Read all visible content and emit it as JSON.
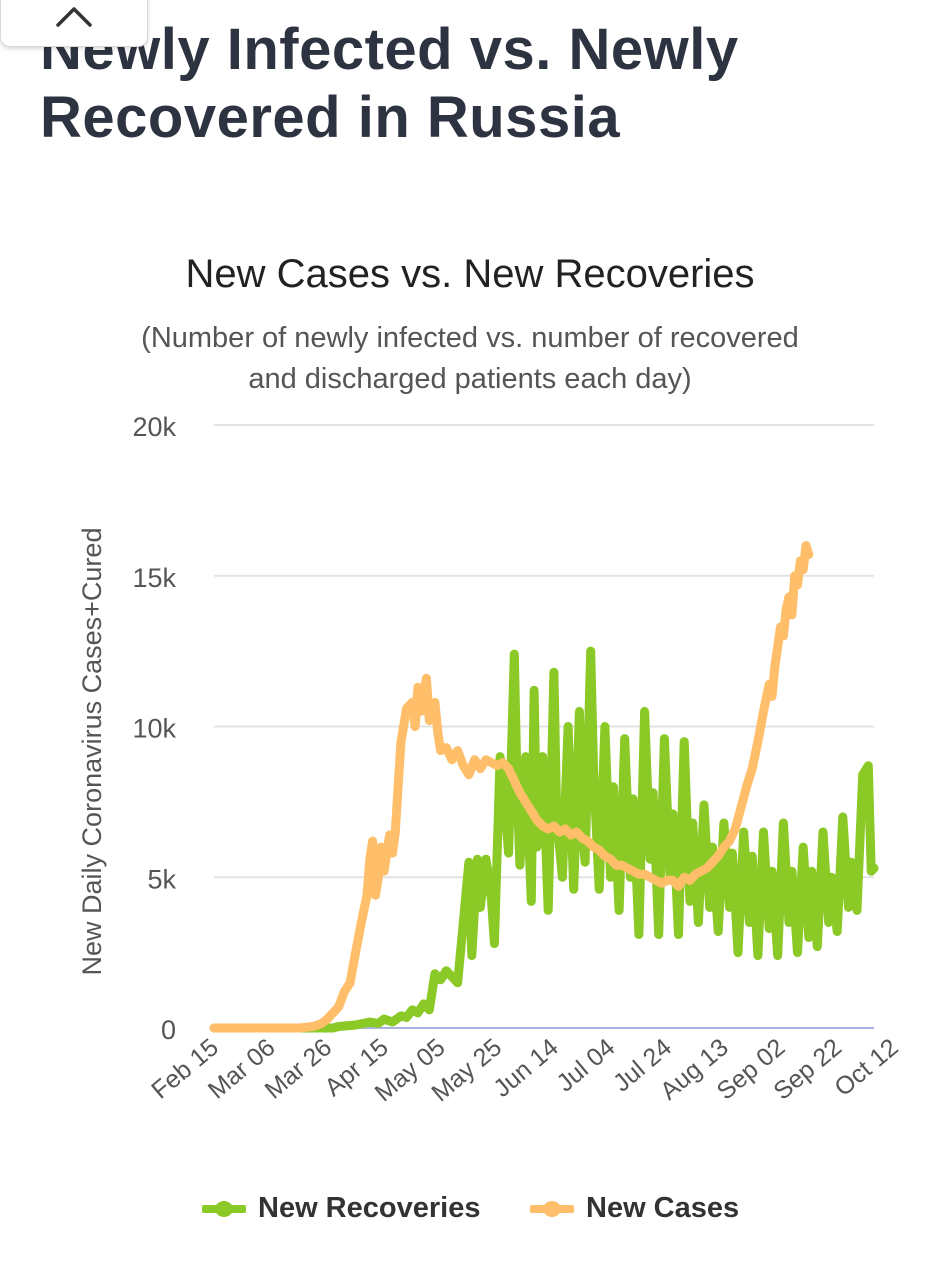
{
  "page": {
    "title": "Newly Infected vs. Newly Recovered in Russia",
    "collapse_icon": "chevron-up-icon"
  },
  "chart_data": {
    "type": "line",
    "title": "New Cases vs. New Recoveries",
    "subtitle": "(Number of newly infected vs. number of recovered and discharged patients each day)",
    "ylabel": "New Daily Coronavirus Cases+Cured",
    "xlabel": "",
    "ylim": [
      0,
      20000
    ],
    "yticks": [
      0,
      5000,
      10000,
      15000,
      20000
    ],
    "ytick_labels": [
      "0",
      "5k",
      "10k",
      "15k",
      "20k"
    ],
    "x_ticks": [
      "Feb 15",
      "Mar 06",
      "Mar 26",
      "Apr 15",
      "May 05",
      "May 25",
      "Jun 14",
      "Jul 04",
      "Jul 24",
      "Aug 13",
      "Sep 02",
      "Sep 22",
      "Oct 12"
    ],
    "x_start": "Feb 15",
    "x_end": "Oct 19",
    "grid": true,
    "legend_position": "bottom",
    "series": [
      {
        "name": "New Recoveries",
        "color": "#8ac926",
        "values": [
          [
            0,
            0
          ],
          [
            42,
            0
          ],
          [
            44,
            50
          ],
          [
            50,
            100
          ],
          [
            55,
            200
          ],
          [
            58,
            150
          ],
          [
            60,
            300
          ],
          [
            63,
            200
          ],
          [
            66,
            400
          ],
          [
            68,
            350
          ],
          [
            70,
            600
          ],
          [
            72,
            500
          ],
          [
            74,
            800
          ],
          [
            76,
            600
          ],
          [
            78,
            1800
          ],
          [
            80,
            1600
          ],
          [
            82,
            1900
          ],
          [
            84,
            1700
          ],
          [
            86,
            1500
          ],
          [
            88,
            3500
          ],
          [
            90,
            5500
          ],
          [
            91,
            2400
          ],
          [
            93,
            5600
          ],
          [
            94,
            4000
          ],
          [
            96,
            5600
          ],
          [
            97,
            5000
          ],
          [
            98,
            4200
          ],
          [
            99,
            2800
          ],
          [
            101,
            9000
          ],
          [
            103,
            7000
          ],
          [
            104,
            5800
          ],
          [
            106,
            12400
          ],
          [
            107,
            8000
          ],
          [
            108,
            5400
          ],
          [
            110,
            9000
          ],
          [
            112,
            4200
          ],
          [
            113,
            11200
          ],
          [
            114,
            6000
          ],
          [
            116,
            9000
          ],
          [
            118,
            3900
          ],
          [
            120,
            11800
          ],
          [
            121,
            7000
          ],
          [
            123,
            5000
          ],
          [
            125,
            10000
          ],
          [
            126,
            7200
          ],
          [
            127,
            4600
          ],
          [
            129,
            10500
          ],
          [
            130,
            6500
          ],
          [
            131,
            5500
          ],
          [
            133,
            12500
          ],
          [
            134,
            8500
          ],
          [
            136,
            4600
          ],
          [
            138,
            10000
          ],
          [
            140,
            5000
          ],
          [
            141,
            8000
          ],
          [
            143,
            3900
          ],
          [
            145,
            9600
          ],
          [
            147,
            5000
          ],
          [
            148,
            7600
          ],
          [
            150,
            3100
          ],
          [
            152,
            10500
          ],
          [
            154,
            5600
          ],
          [
            155,
            7800
          ],
          [
            157,
            3100
          ],
          [
            159,
            9600
          ],
          [
            161,
            5000
          ],
          [
            162,
            7100
          ],
          [
            164,
            3100
          ],
          [
            166,
            9500
          ],
          [
            168,
            4200
          ],
          [
            169,
            6800
          ],
          [
            171,
            3500
          ],
          [
            173,
            7400
          ],
          [
            175,
            4000
          ],
          [
            176,
            6000
          ],
          [
            178,
            3200
          ],
          [
            180,
            6800
          ],
          [
            182,
            4000
          ],
          [
            183,
            5800
          ],
          [
            185,
            2500
          ],
          [
            187,
            6500
          ],
          [
            189,
            3500
          ],
          [
            190,
            5700
          ],
          [
            192,
            2400
          ],
          [
            194,
            6500
          ],
          [
            196,
            3300
          ],
          [
            197,
            5200
          ],
          [
            199,
            2400
          ],
          [
            201,
            6800
          ],
          [
            203,
            3500
          ],
          [
            204,
            5200
          ],
          [
            206,
            2500
          ],
          [
            208,
            6000
          ],
          [
            210,
            3000
          ],
          [
            211,
            5200
          ],
          [
            213,
            2700
          ],
          [
            215,
            6500
          ],
          [
            217,
            3500
          ],
          [
            218,
            5000
          ],
          [
            220,
            3200
          ],
          [
            222,
            7000
          ],
          [
            224,
            4000
          ],
          [
            225,
            5500
          ],
          [
            227,
            3900
          ],
          [
            229,
            8400
          ],
          [
            231,
            8700
          ],
          [
            232,
            5200
          ],
          [
            233,
            5300
          ]
        ]
      },
      {
        "name": "New Cases",
        "color": "#ffbe69",
        "values": [
          [
            0,
            0
          ],
          [
            30,
            0
          ],
          [
            35,
            50
          ],
          [
            38,
            150
          ],
          [
            40,
            300
          ],
          [
            42,
            500
          ],
          [
            44,
            700
          ],
          [
            46,
            1200
          ],
          [
            48,
            1500
          ],
          [
            50,
            2500
          ],
          [
            52,
            3500
          ],
          [
            54,
            4400
          ],
          [
            55,
            5600
          ],
          [
            56,
            6200
          ],
          [
            57,
            4400
          ],
          [
            58,
            5000
          ],
          [
            59,
            6000
          ],
          [
            60,
            5200
          ],
          [
            62,
            6400
          ],
          [
            63,
            5800
          ],
          [
            64,
            6500
          ],
          [
            65,
            8000
          ],
          [
            66,
            9500
          ],
          [
            68,
            10600
          ],
          [
            70,
            10800
          ],
          [
            71,
            10000
          ],
          [
            72,
            11300
          ],
          [
            73,
            10500
          ],
          [
            75,
            11600
          ],
          [
            76,
            10200
          ],
          [
            78,
            10800
          ],
          [
            79,
            9800
          ],
          [
            80,
            9200
          ],
          [
            82,
            9300
          ],
          [
            84,
            8900
          ],
          [
            86,
            9200
          ],
          [
            88,
            8700
          ],
          [
            90,
            8400
          ],
          [
            92,
            8900
          ],
          [
            94,
            8600
          ],
          [
            96,
            8900
          ],
          [
            98,
            8800
          ],
          [
            100,
            8700
          ],
          [
            102,
            8800
          ],
          [
            104,
            8600
          ],
          [
            106,
            8200
          ],
          [
            108,
            7800
          ],
          [
            110,
            7500
          ],
          [
            112,
            7200
          ],
          [
            114,
            6900
          ],
          [
            116,
            6700
          ],
          [
            118,
            6600
          ],
          [
            120,
            6700
          ],
          [
            122,
            6500
          ],
          [
            124,
            6600
          ],
          [
            126,
            6400
          ],
          [
            128,
            6500
          ],
          [
            130,
            6300
          ],
          [
            132,
            6200
          ],
          [
            134,
            6000
          ],
          [
            136,
            5900
          ],
          [
            138,
            5700
          ],
          [
            140,
            5600
          ],
          [
            142,
            5400
          ],
          [
            144,
            5400
          ],
          [
            146,
            5300
          ],
          [
            148,
            5200
          ],
          [
            150,
            5100
          ],
          [
            152,
            5100
          ],
          [
            154,
            5000
          ],
          [
            156,
            4900
          ],
          [
            158,
            4800
          ],
          [
            160,
            4900
          ],
          [
            162,
            4900
          ],
          [
            164,
            4700
          ],
          [
            166,
            5000
          ],
          [
            168,
            4900
          ],
          [
            170,
            5100
          ],
          [
            172,
            5200
          ],
          [
            174,
            5300
          ],
          [
            176,
            5500
          ],
          [
            178,
            5700
          ],
          [
            180,
            6000
          ],
          [
            182,
            6200
          ],
          [
            184,
            6600
          ],
          [
            186,
            7300
          ],
          [
            188,
            8000
          ],
          [
            190,
            8600
          ],
          [
            192,
            9500
          ],
          [
            194,
            10500
          ],
          [
            196,
            11400
          ],
          [
            197,
            11000
          ],
          [
            198,
            12000
          ],
          [
            200,
            13300
          ],
          [
            201,
            13000
          ],
          [
            202,
            13900
          ],
          [
            203,
            14300
          ],
          [
            204,
            13700
          ],
          [
            205,
            15000
          ],
          [
            206,
            14700
          ],
          [
            207,
            15500
          ],
          [
            208,
            15200
          ],
          [
            209,
            16000
          ],
          [
            210,
            15700
          ]
        ]
      }
    ]
  }
}
